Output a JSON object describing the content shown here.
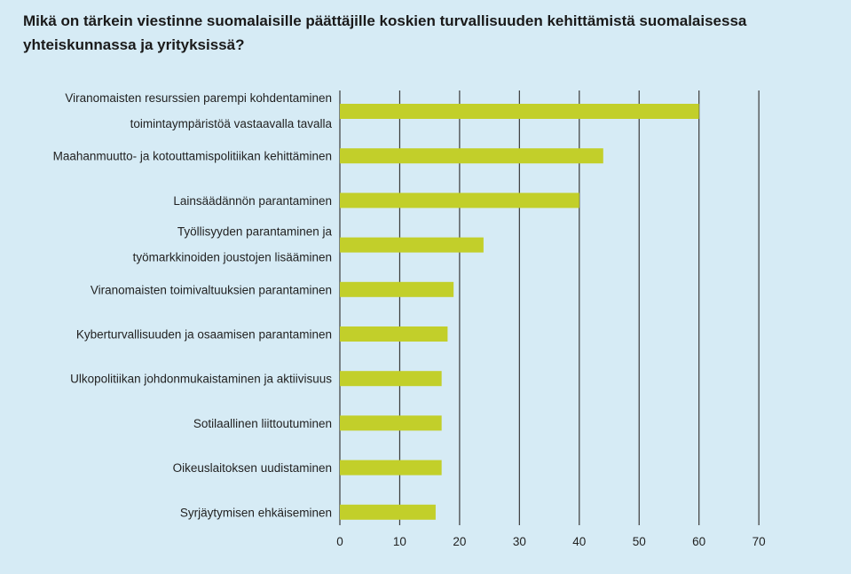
{
  "chart_data": {
    "type": "bar",
    "orientation": "horizontal",
    "title": "Mikä on tärkein viestinne suomalaisille päättäjille koskien turvallisuuden kehittämistä suomalaisessa yhteiskunnassa ja yrityksissä?",
    "categories": [
      [
        "Viranomaisten resurssien parempi kohdentaminen",
        "toimintaympäristöä vastaavalla tavalla"
      ],
      [
        "Maahanmuutto- ja kotouttamispolitiikan kehittäminen"
      ],
      [
        "Lainsäädännön parantaminen"
      ],
      [
        "Työllisyyden parantaminen ja",
        "työmarkkinoiden joustojen lisääminen"
      ],
      [
        "Viranomaisten toimivaltuuksien parantaminen"
      ],
      [
        "Kyberturvallisuuden ja osaamisen parantaminen"
      ],
      [
        "Ulkopolitiikan johdonmukaistaminen ja aktiivisuus"
      ],
      [
        "Sotilaallinen liittoutuminen"
      ],
      [
        "Oikeuslaitoksen uudistaminen"
      ],
      [
        "Syrjäytymisen ehkäiseminen"
      ]
    ],
    "values": [
      60,
      44,
      40,
      24,
      19,
      18,
      17,
      17,
      17,
      16
    ],
    "xlim": [
      0,
      70
    ],
    "xticks": [
      0,
      10,
      20,
      30,
      40,
      50,
      60,
      70
    ],
    "grid": true,
    "bar_color": "#c2cf2a",
    "grid_color": "#3a3a3a"
  }
}
